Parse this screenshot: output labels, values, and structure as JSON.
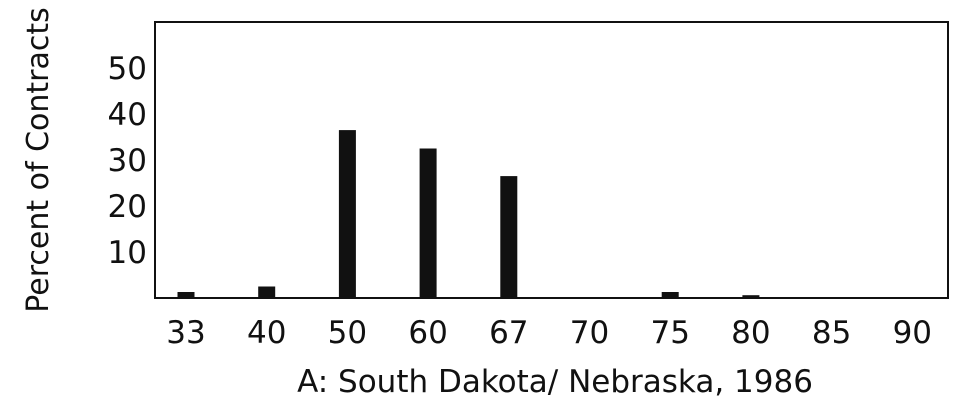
{
  "chart_data": {
    "type": "bar",
    "categories": [
      "33",
      "40",
      "50",
      "60",
      "67",
      "70",
      "75",
      "80",
      "85",
      "90"
    ],
    "values": [
      1.3,
      2.5,
      36.5,
      32.5,
      26.5,
      0,
      1.3,
      0.6,
      0,
      0
    ],
    "title": "",
    "xlabel": "A: South Dakota/ Nebraska, 1986",
    "ylabel": "Percent of Contracts",
    "ylim": [
      0,
      60
    ],
    "yticks": [
      "10",
      "20",
      "30",
      "40",
      "50"
    ],
    "grid": false,
    "legend": "none",
    "colors": {
      "bar": "#111111",
      "frame": "#111111",
      "text": "#111111"
    }
  }
}
